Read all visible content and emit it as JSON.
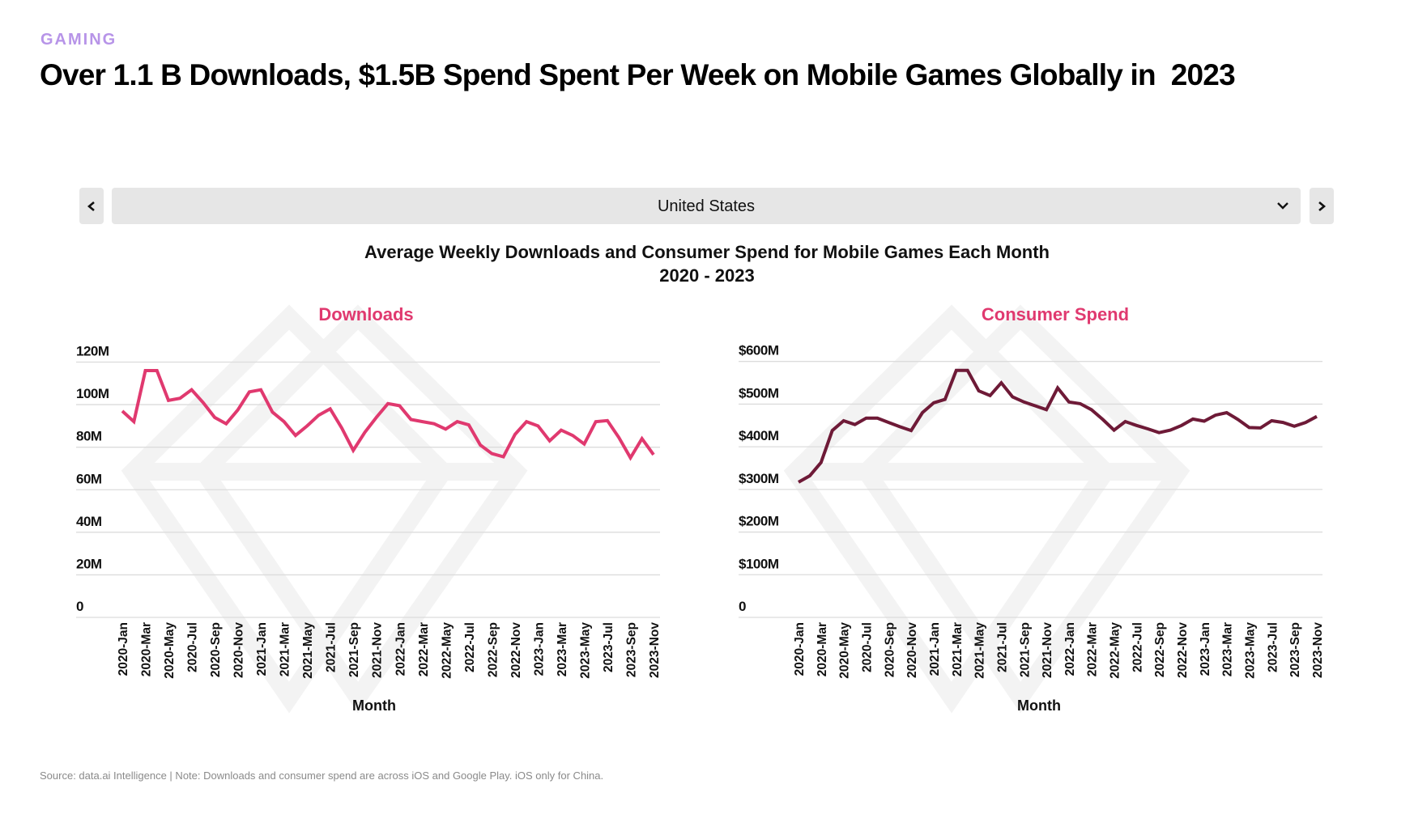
{
  "header": {
    "eyebrow": "GAMING",
    "headline": "Over 1.1 B Downloads, $1.5B Spend Spent Per Week on Mobile Games Globally in  2023"
  },
  "selector": {
    "value": "United States",
    "prev_icon": "chevron-left-icon",
    "next_icon": "chevron-right-icon",
    "dropdown_icon": "chevron-down-icon"
  },
  "chart_header": {
    "title_line1": "Average Weekly Downloads and Consumer Spend for Mobile Games Each Month",
    "title_line2": "2020 - 2023"
  },
  "footer": {
    "source": "Source: data.ai Intelligence | Note: Downloads and consumer spend are across iOS and Google Play. iOS only for China."
  },
  "colors": {
    "downloads_line": "#e0396f",
    "spend_line": "#6e1a37",
    "panel_title": "#e0396f",
    "eyebrow": "#b794e8",
    "grid": "#dcdcdc",
    "watermark": "#f3f3f3",
    "control_bg": "#e6e6e6"
  },
  "chart_data": [
    {
      "type": "line",
      "title": "Downloads",
      "xlabel": "Month",
      "ylabel": "",
      "ylim": [
        0,
        120
      ],
      "yticks": [
        0,
        20,
        40,
        60,
        80,
        100,
        120
      ],
      "ytick_labels": [
        "0",
        "20M",
        "40M",
        "60M",
        "80M",
        "100M",
        "120M"
      ],
      "grid": true,
      "unit": "M downloads",
      "x": [
        "2020-Jan",
        "2020-Feb",
        "2020-Mar",
        "2020-Apr",
        "2020-May",
        "2020-Jun",
        "2020-Jul",
        "2020-Aug",
        "2020-Sep",
        "2020-Oct",
        "2020-Nov",
        "2020-Dec",
        "2021-Jan",
        "2021-Feb",
        "2021-Mar",
        "2021-Apr",
        "2021-May",
        "2021-Jun",
        "2021-Jul",
        "2021-Aug",
        "2021-Sep",
        "2021-Oct",
        "2021-Nov",
        "2021-Dec",
        "2022-Jan",
        "2022-Feb",
        "2022-Mar",
        "2022-Apr",
        "2022-May",
        "2022-Jun",
        "2022-Jul",
        "2022-Aug",
        "2022-Sep",
        "2022-Oct",
        "2022-Nov",
        "2022-Dec",
        "2023-Jan",
        "2023-Feb",
        "2023-Mar",
        "2023-Apr",
        "2023-May",
        "2023-Jun",
        "2023-Jul",
        "2023-Aug",
        "2023-Sep",
        "2023-Oct",
        "2023-Nov"
      ],
      "xtick_labels": [
        "2020-Jan",
        "2020-Mar",
        "2020-May",
        "2020-Jul",
        "2020-Sep",
        "2020-Nov",
        "2021-Jan",
        "2021-Mar",
        "2021-May",
        "2021-Jul",
        "2021-Sep",
        "2021-Nov",
        "2022-Jan",
        "2022-Mar",
        "2022-May",
        "2022-Jul",
        "2022-Sep",
        "2022-Nov",
        "2023-Jan",
        "2023-Mar",
        "2023-May",
        "2023-Jul",
        "2023-Sep",
        "2023-Nov"
      ],
      "series": [
        {
          "name": "Downloads",
          "values": [
            97,
            92,
            116,
            116,
            102,
            103,
            107,
            101,
            94,
            91,
            97.5,
            106,
            107,
            96.5,
            92,
            85.5,
            90,
            95,
            98,
            89,
            78.5,
            87,
            94,
            100.5,
            99.5,
            93,
            92,
            91,
            88.5,
            92,
            90.5,
            81,
            77,
            75.5,
            86,
            92,
            90,
            83,
            88,
            85.5,
            81.5,
            92,
            92.5,
            84.5,
            75,
            84,
            76.5
          ]
        }
      ]
    },
    {
      "type": "line",
      "title": "Consumer Spend",
      "xlabel": "Month",
      "ylabel": "",
      "ylim": [
        0,
        600
      ],
      "yticks": [
        0,
        100,
        200,
        300,
        400,
        500,
        600
      ],
      "ytick_labels": [
        "0",
        "$100M",
        "$200M",
        "$300M",
        "$400M",
        "$500M",
        "$600M"
      ],
      "grid": true,
      "unit": "$M",
      "x": [
        "2020-Jan",
        "2020-Feb",
        "2020-Mar",
        "2020-Apr",
        "2020-May",
        "2020-Jun",
        "2020-Jul",
        "2020-Aug",
        "2020-Sep",
        "2020-Oct",
        "2020-Nov",
        "2020-Dec",
        "2021-Jan",
        "2021-Feb",
        "2021-Mar",
        "2021-Apr",
        "2021-May",
        "2021-Jun",
        "2021-Jul",
        "2021-Aug",
        "2021-Sep",
        "2021-Oct",
        "2021-Nov",
        "2021-Dec",
        "2022-Jan",
        "2022-Feb",
        "2022-Mar",
        "2022-Apr",
        "2022-May",
        "2022-Jun",
        "2022-Jul",
        "2022-Aug",
        "2022-Sep",
        "2022-Oct",
        "2022-Nov",
        "2022-Dec",
        "2023-Jan",
        "2023-Feb",
        "2023-Mar",
        "2023-Apr",
        "2023-May",
        "2023-Jun",
        "2023-Jul",
        "2023-Aug",
        "2023-Sep",
        "2023-Oct",
        "2023-Nov"
      ],
      "xtick_labels": [
        "2020-Jan",
        "2020-Mar",
        "2020-May",
        "2020-Jul",
        "2020-Sep",
        "2020-Nov",
        "2021-Jan",
        "2021-Mar",
        "2021-May",
        "2021-Jul",
        "2021-Sep",
        "2021-Nov",
        "2022-Jan",
        "2022-Mar",
        "2022-May",
        "2022-Jul",
        "2022-Sep",
        "2022-Nov",
        "2023-Jan",
        "2023-Mar",
        "2023-May",
        "2023-Jul",
        "2023-Sep",
        "2023-Nov"
      ],
      "series": [
        {
          "name": "Consumer Spend",
          "values": [
            317,
            332,
            363,
            438,
            461,
            452,
            467,
            467,
            457,
            447,
            438,
            480,
            503,
            511,
            579,
            579,
            531,
            520,
            550,
            517,
            505,
            496,
            487,
            538,
            505,
            501,
            487,
            464,
            439,
            459,
            450,
            442,
            433,
            439,
            450,
            465,
            460,
            474,
            480,
            464,
            445,
            444,
            461,
            457,
            448,
            457,
            471
          ]
        }
      ]
    }
  ]
}
